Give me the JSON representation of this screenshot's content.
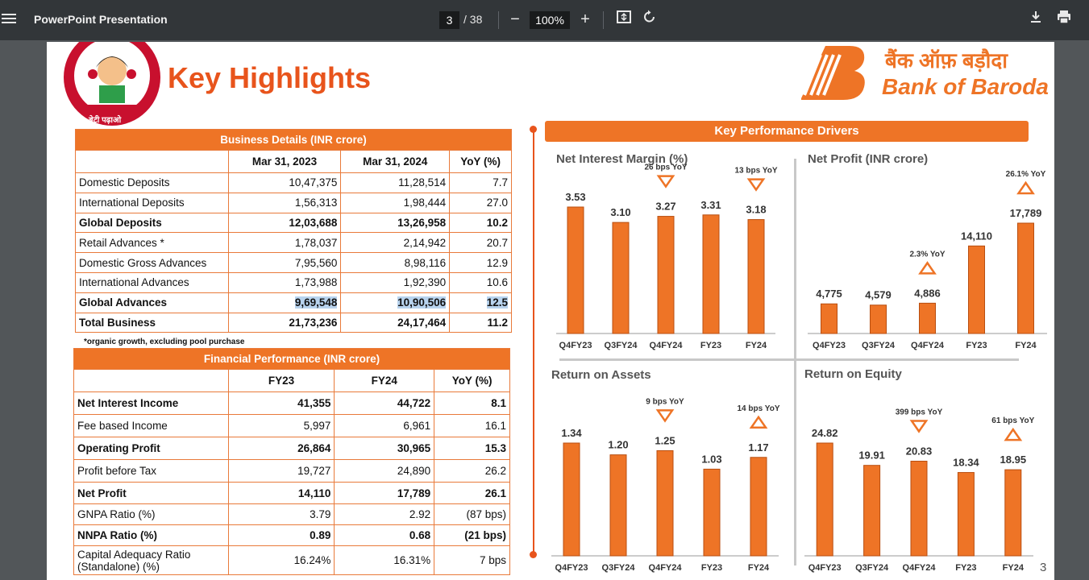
{
  "toolbar": {
    "title": "PowerPoint Presentation",
    "page_current": "3",
    "page_total": "/ 38",
    "zoom": "100%",
    "minus": "−",
    "plus": "+"
  },
  "slide": {
    "title": "Key Highlights",
    "logo_left_text": "बेटी पढ़ाओ",
    "logo_right_hindi": "बैंक ऑफ़ बड़ौदा",
    "logo_right_english": "Bank of Baroda",
    "page_number": "3",
    "note": "*organic growth, excluding pool purchase"
  },
  "business_table": {
    "title": "Business Details (INR crore)",
    "headers": [
      "",
      "Mar 31, 2023",
      "Mar 31, 2024",
      "YoY (%)"
    ],
    "rows": [
      [
        "Domestic Deposits",
        "10,47,375",
        "11,28,514",
        "7.7"
      ],
      [
        "International Deposits",
        "1,56,313",
        "1,98,444",
        "27.0"
      ],
      [
        "Global Deposits",
        "12,03,688",
        "13,26,958",
        "10.2"
      ],
      [
        "Retail Advances *",
        "1,78,037",
        "2,14,942",
        "20.7"
      ],
      [
        "Domestic Gross Advances",
        "7,95,560",
        "8,98,116",
        "12.9"
      ],
      [
        "International Advances",
        "1,73,988",
        "1,92,390",
        "10.6"
      ],
      [
        " Global Advances",
        "9,69,548",
        "10,90,506",
        "12.5"
      ],
      [
        "Total Business",
        "21,73,236",
        "24,17,464",
        "11.2"
      ]
    ]
  },
  "financial_table": {
    "title": "Financial Performance (INR crore)",
    "headers": [
      "",
      "FY23",
      "FY24",
      "YoY (%)"
    ],
    "rows": [
      [
        "Net Interest Income",
        "41,355",
        "44,722",
        "8.1"
      ],
      [
        "Fee based Income",
        "5,997",
        "6,961",
        "16.1"
      ],
      [
        "Operating Profit",
        "26,864",
        "30,965",
        "15.3"
      ],
      [
        "Profit before Tax",
        "19,727",
        "24,890",
        "26.2"
      ],
      [
        "Net Profit",
        "14,110",
        "17,789",
        "26.1"
      ],
      [
        "GNPA Ratio (%)",
        "3.79",
        "2.92",
        "(87 bps)"
      ],
      [
        "NNPA Ratio (%)",
        "0.89",
        "0.68",
        "(21 bps)"
      ],
      [
        "Capital Adequacy Ratio (Standalone) (%)",
        "16.24%",
        "16.31%",
        "7 bps"
      ]
    ]
  },
  "kpd": {
    "title": "Key Performance Drivers"
  },
  "chart_data": [
    {
      "type": "bar",
      "title": "Net Interest Margin (%)",
      "categories": [
        "Q4FY23",
        "Q3FY24",
        "Q4FY24",
        "FY23",
        "FY24"
      ],
      "values": [
        3.53,
        3.1,
        3.27,
        3.31,
        3.18
      ],
      "labels": [
        "3.53",
        "3.10",
        "3.27",
        "3.31",
        "3.18"
      ],
      "ylim": [
        0,
        3.53
      ],
      "annotations": [
        {
          "text": "26 bps YoY",
          "category": "Q4FY24",
          "direction": "down"
        },
        {
          "text": "13 bps YoY",
          "category": "FY24",
          "direction": "down"
        }
      ],
      "color": "#ee7426"
    },
    {
      "type": "bar",
      "title": "Net Profit (INR crore)",
      "categories": [
        "Q4FY23",
        "Q3FY24",
        "Q4FY24",
        "FY23",
        "FY24"
      ],
      "values": [
        4775,
        4579,
        4886,
        14110,
        17789
      ],
      "labels": [
        "4,775",
        "4,579",
        "4,886",
        "14,110",
        "17,789"
      ],
      "ylim": [
        0,
        17789
      ],
      "annotations": [
        {
          "text": "2.3% YoY",
          "category": "Q4FY24",
          "direction": "up"
        },
        {
          "text": "26.1% YoY",
          "category": "FY24",
          "direction": "up"
        }
      ],
      "color": "#ee7426"
    },
    {
      "type": "bar",
      "title": "Return on Assets",
      "categories": [
        "Q4FY23",
        "Q3FY24",
        "Q4FY24",
        "FY23",
        "FY24"
      ],
      "values": [
        1.34,
        1.2,
        1.25,
        1.03,
        1.17
      ],
      "labels": [
        "1.34",
        "1.20",
        "1.25",
        "1.03",
        "1.17"
      ],
      "ylim": [
        0,
        1.34
      ],
      "annotations": [
        {
          "text": "9 bps YoY",
          "category": "Q4FY24",
          "direction": "down"
        },
        {
          "text": "14 bps YoY",
          "category": "FY24",
          "direction": "up"
        }
      ],
      "color": "#ee7426"
    },
    {
      "type": "bar",
      "title": "Return on Equity",
      "categories": [
        "Q4FY23",
        "Q3FY24",
        "Q4FY24",
        "FY23",
        "FY24"
      ],
      "values": [
        24.82,
        19.91,
        20.83,
        18.34,
        18.95
      ],
      "labels": [
        "24.82",
        "19.91",
        "20.83",
        "18.34",
        "18.95"
      ],
      "ylim": [
        0,
        24.82
      ],
      "annotations": [
        {
          "text": "399 bps YoY",
          "category": "Q4FY24",
          "direction": "down"
        },
        {
          "text": "61 bps YoY",
          "category": "FY24",
          "direction": "up"
        }
      ],
      "color": "#ee7426"
    }
  ]
}
